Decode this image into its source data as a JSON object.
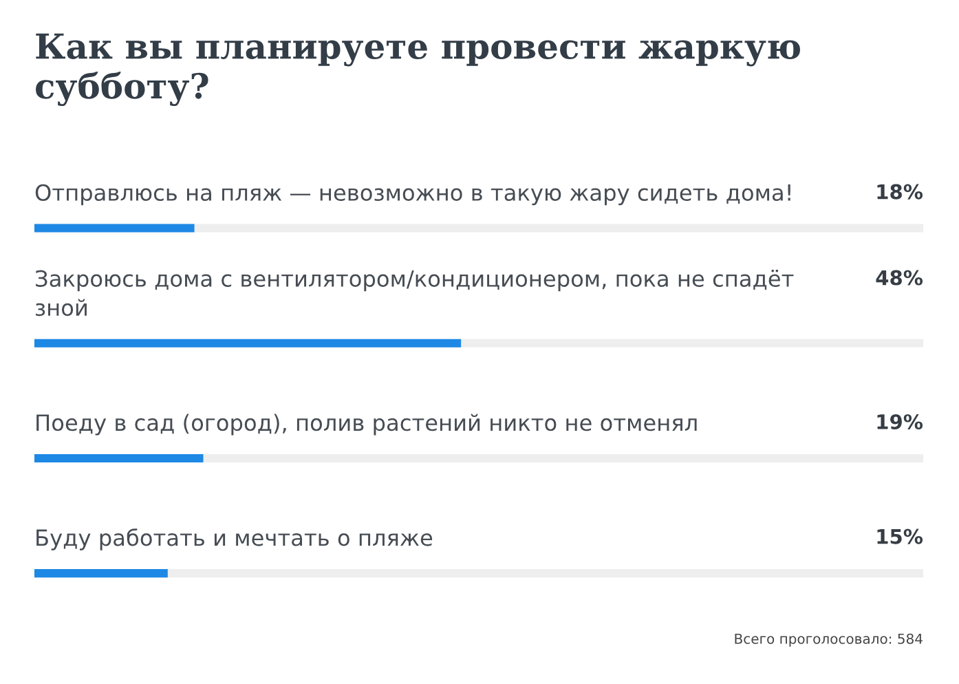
{
  "chart_data": {
    "type": "bar",
    "orientation": "horizontal",
    "title": "Как вы планируете провести жаркую\nсубботу?",
    "categories": [
      "Отправлюсь на пляж — невозможно в такую жару сидеть дома!",
      "Закроюсь дома с вентилятором/кондиционером, пока не спадёт\nзной",
      "Поеду в сад (огород), полив растений никто не отменял",
      "Буду работать и мечтать о пляже"
    ],
    "series": [
      {
        "color": "#1e88e5",
        "values": [
          18,
          48,
          19,
          15
        ],
        "value_labels": [
          "18%",
          "48%",
          "19%",
          "15%"
        ]
      }
    ],
    "xlim": [
      0,
      100
    ],
    "grid": "y",
    "tick_labels": "y",
    "annotations": [
      "Всего проголосовало: 584"
    ]
  }
}
